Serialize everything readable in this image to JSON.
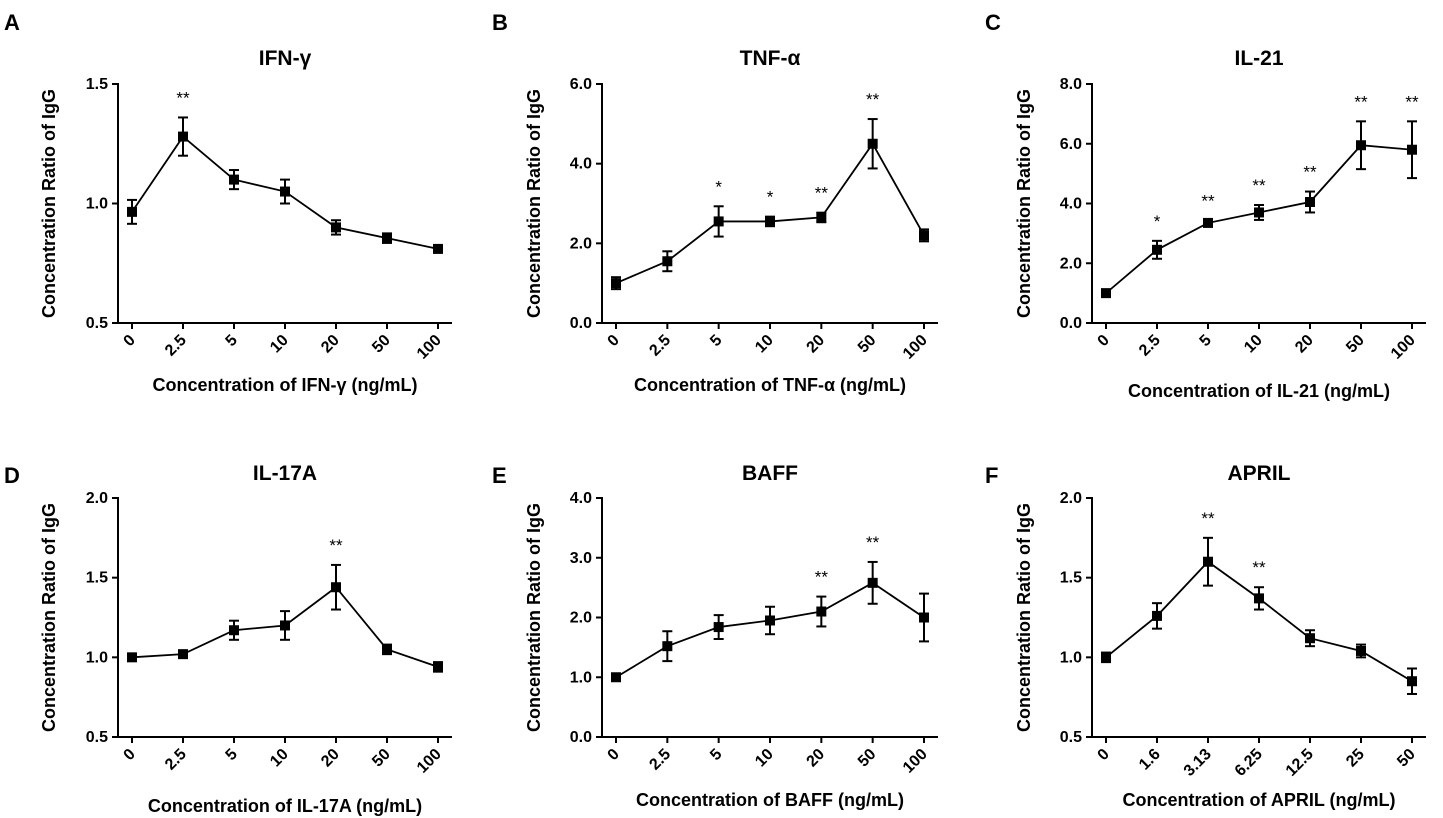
{
  "figure": {
    "panels": [
      "A",
      "B",
      "C",
      "D",
      "E",
      "F"
    ]
  },
  "colors": {
    "ink": "#000000",
    "background": "#ffffff"
  },
  "chart_data": [
    {
      "panel": "A",
      "type": "line",
      "title": "IFN-γ",
      "xlabel": "Concentration of IFN-γ (ng/mL)",
      "ylabel": "Concentration Ratio of IgG",
      "categories": [
        "0",
        "2.5",
        "5",
        "10",
        "20",
        "50",
        "100"
      ],
      "values": [
        0.965,
        1.28,
        1.1,
        1.05,
        0.9,
        0.855,
        0.81
      ],
      "errors": [
        0.05,
        0.08,
        0.04,
        0.05,
        0.03,
        0.02,
        0.015
      ],
      "significance": [
        "",
        "**",
        "",
        "",
        "",
        "",
        ""
      ],
      "ylim": [
        0.5,
        1.5
      ],
      "yticks": [
        "0.5",
        "1.0",
        "1.5"
      ],
      "rotate_ticks": true
    },
    {
      "panel": "B",
      "type": "line",
      "title": "TNF-α",
      "xlabel": "Concentration of TNF-α (ng/mL)",
      "ylabel": "Concentration Ratio of IgG",
      "categories": [
        "0",
        "2.5",
        "5",
        "10",
        "20",
        "50",
        "100"
      ],
      "values": [
        1.0,
        1.55,
        2.55,
        2.55,
        2.65,
        4.5,
        2.2
      ],
      "errors": [
        0.15,
        0.25,
        0.38,
        0.12,
        0.12,
        0.62,
        0.15
      ],
      "significance": [
        "",
        "",
        "*",
        "*",
        "**",
        "**",
        ""
      ],
      "ylim": [
        0,
        6
      ],
      "yticks": [
        "0.0",
        "2.0",
        "4.0",
        "6.0"
      ],
      "rotate_ticks": true
    },
    {
      "panel": "C",
      "type": "line",
      "title": "IL-21",
      "xlabel": "Concentration of IL-21 (ng/mL)",
      "ylabel": "Concentration Ratio of IgG",
      "categories": [
        "0",
        "2.5",
        "5",
        "10",
        "20",
        "50",
        "100"
      ],
      "values": [
        1.0,
        2.45,
        3.35,
        3.7,
        4.05,
        5.95,
        5.8
      ],
      "errors": [
        0.05,
        0.3,
        0.08,
        0.25,
        0.35,
        0.8,
        0.95
      ],
      "significance": [
        "",
        "*",
        "**",
        "**",
        "**",
        "**",
        "**"
      ],
      "ylim": [
        0,
        8
      ],
      "yticks": [
        "0.0",
        "2.0",
        "4.0",
        "6.0",
        "8.0"
      ],
      "rotate_ticks": true
    },
    {
      "panel": "D",
      "type": "line",
      "title": "IL-17A",
      "xlabel": "Concentration of IL-17A (ng/mL)",
      "ylabel": "Concentration Ratio of IgG",
      "categories": [
        "0",
        "2.5",
        "5",
        "10",
        "20",
        "50",
        "100"
      ],
      "values": [
        1.0,
        1.02,
        1.17,
        1.2,
        1.44,
        1.05,
        0.94
      ],
      "errors": [
        0.01,
        0.01,
        0.06,
        0.09,
        0.14,
        0.03,
        0.03
      ],
      "significance": [
        "",
        "",
        "",
        "",
        "**",
        "",
        ""
      ],
      "ylim": [
        0.5,
        2.0
      ],
      "yticks": [
        "0.5",
        "1.0",
        "1.5",
        "2.0"
      ],
      "rotate_ticks": true
    },
    {
      "panel": "E",
      "type": "line",
      "title": "BAFF",
      "xlabel": "Concentration of BAFF (ng/mL)",
      "ylabel": "Concentration Ratio of IgG",
      "categories": [
        "0",
        "2.5",
        "5",
        "10",
        "20",
        "50",
        "100"
      ],
      "values": [
        1.0,
        1.52,
        1.84,
        1.95,
        2.1,
        2.58,
        2.0
      ],
      "errors": [
        0.03,
        0.25,
        0.2,
        0.23,
        0.25,
        0.35,
        0.4
      ],
      "significance": [
        "",
        "",
        "",
        "",
        "**",
        "**",
        ""
      ],
      "ylim": [
        0,
        4
      ],
      "yticks": [
        "0.0",
        "1.0",
        "2.0",
        "3.0",
        "4.0"
      ],
      "rotate_ticks": true
    },
    {
      "panel": "F",
      "type": "line",
      "title": "APRIL",
      "xlabel": "Concentration of APRIL (ng/mL)",
      "ylabel": "Concentration Ratio of IgG",
      "categories": [
        "0",
        "1.6",
        "3.13",
        "6.25",
        "12.5",
        "25",
        "50"
      ],
      "values": [
        1.0,
        1.26,
        1.6,
        1.37,
        1.12,
        1.04,
        0.85
      ],
      "errors": [
        0.03,
        0.08,
        0.15,
        0.07,
        0.05,
        0.04,
        0.08
      ],
      "significance": [
        "",
        "",
        "**",
        "**",
        "",
        "",
        ""
      ],
      "ylim": [
        0.5,
        2.0
      ],
      "yticks": [
        "0.5",
        "1.0",
        "1.5",
        "2.0"
      ],
      "rotate_ticks": true
    }
  ]
}
